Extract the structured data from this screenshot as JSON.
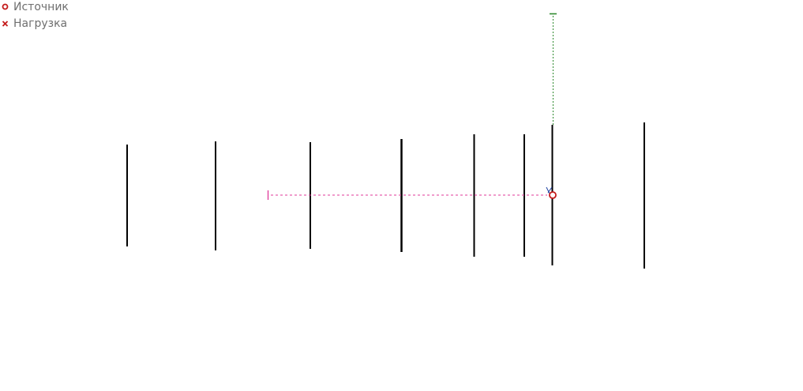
{
  "legend": {
    "source_label": "Источник",
    "load_label": "Нагрузка",
    "source_icon": "red-ring-icon",
    "load_icon": "red-cross-icon"
  },
  "colors": {
    "source": "#c41a1a",
    "load": "#c41a1a",
    "feeder_line": "#e0389a",
    "vertical_line": "#2f8a2f",
    "bars": "#000000",
    "legend_text": "#6f6f6f",
    "background": "#ffffff"
  }
}
